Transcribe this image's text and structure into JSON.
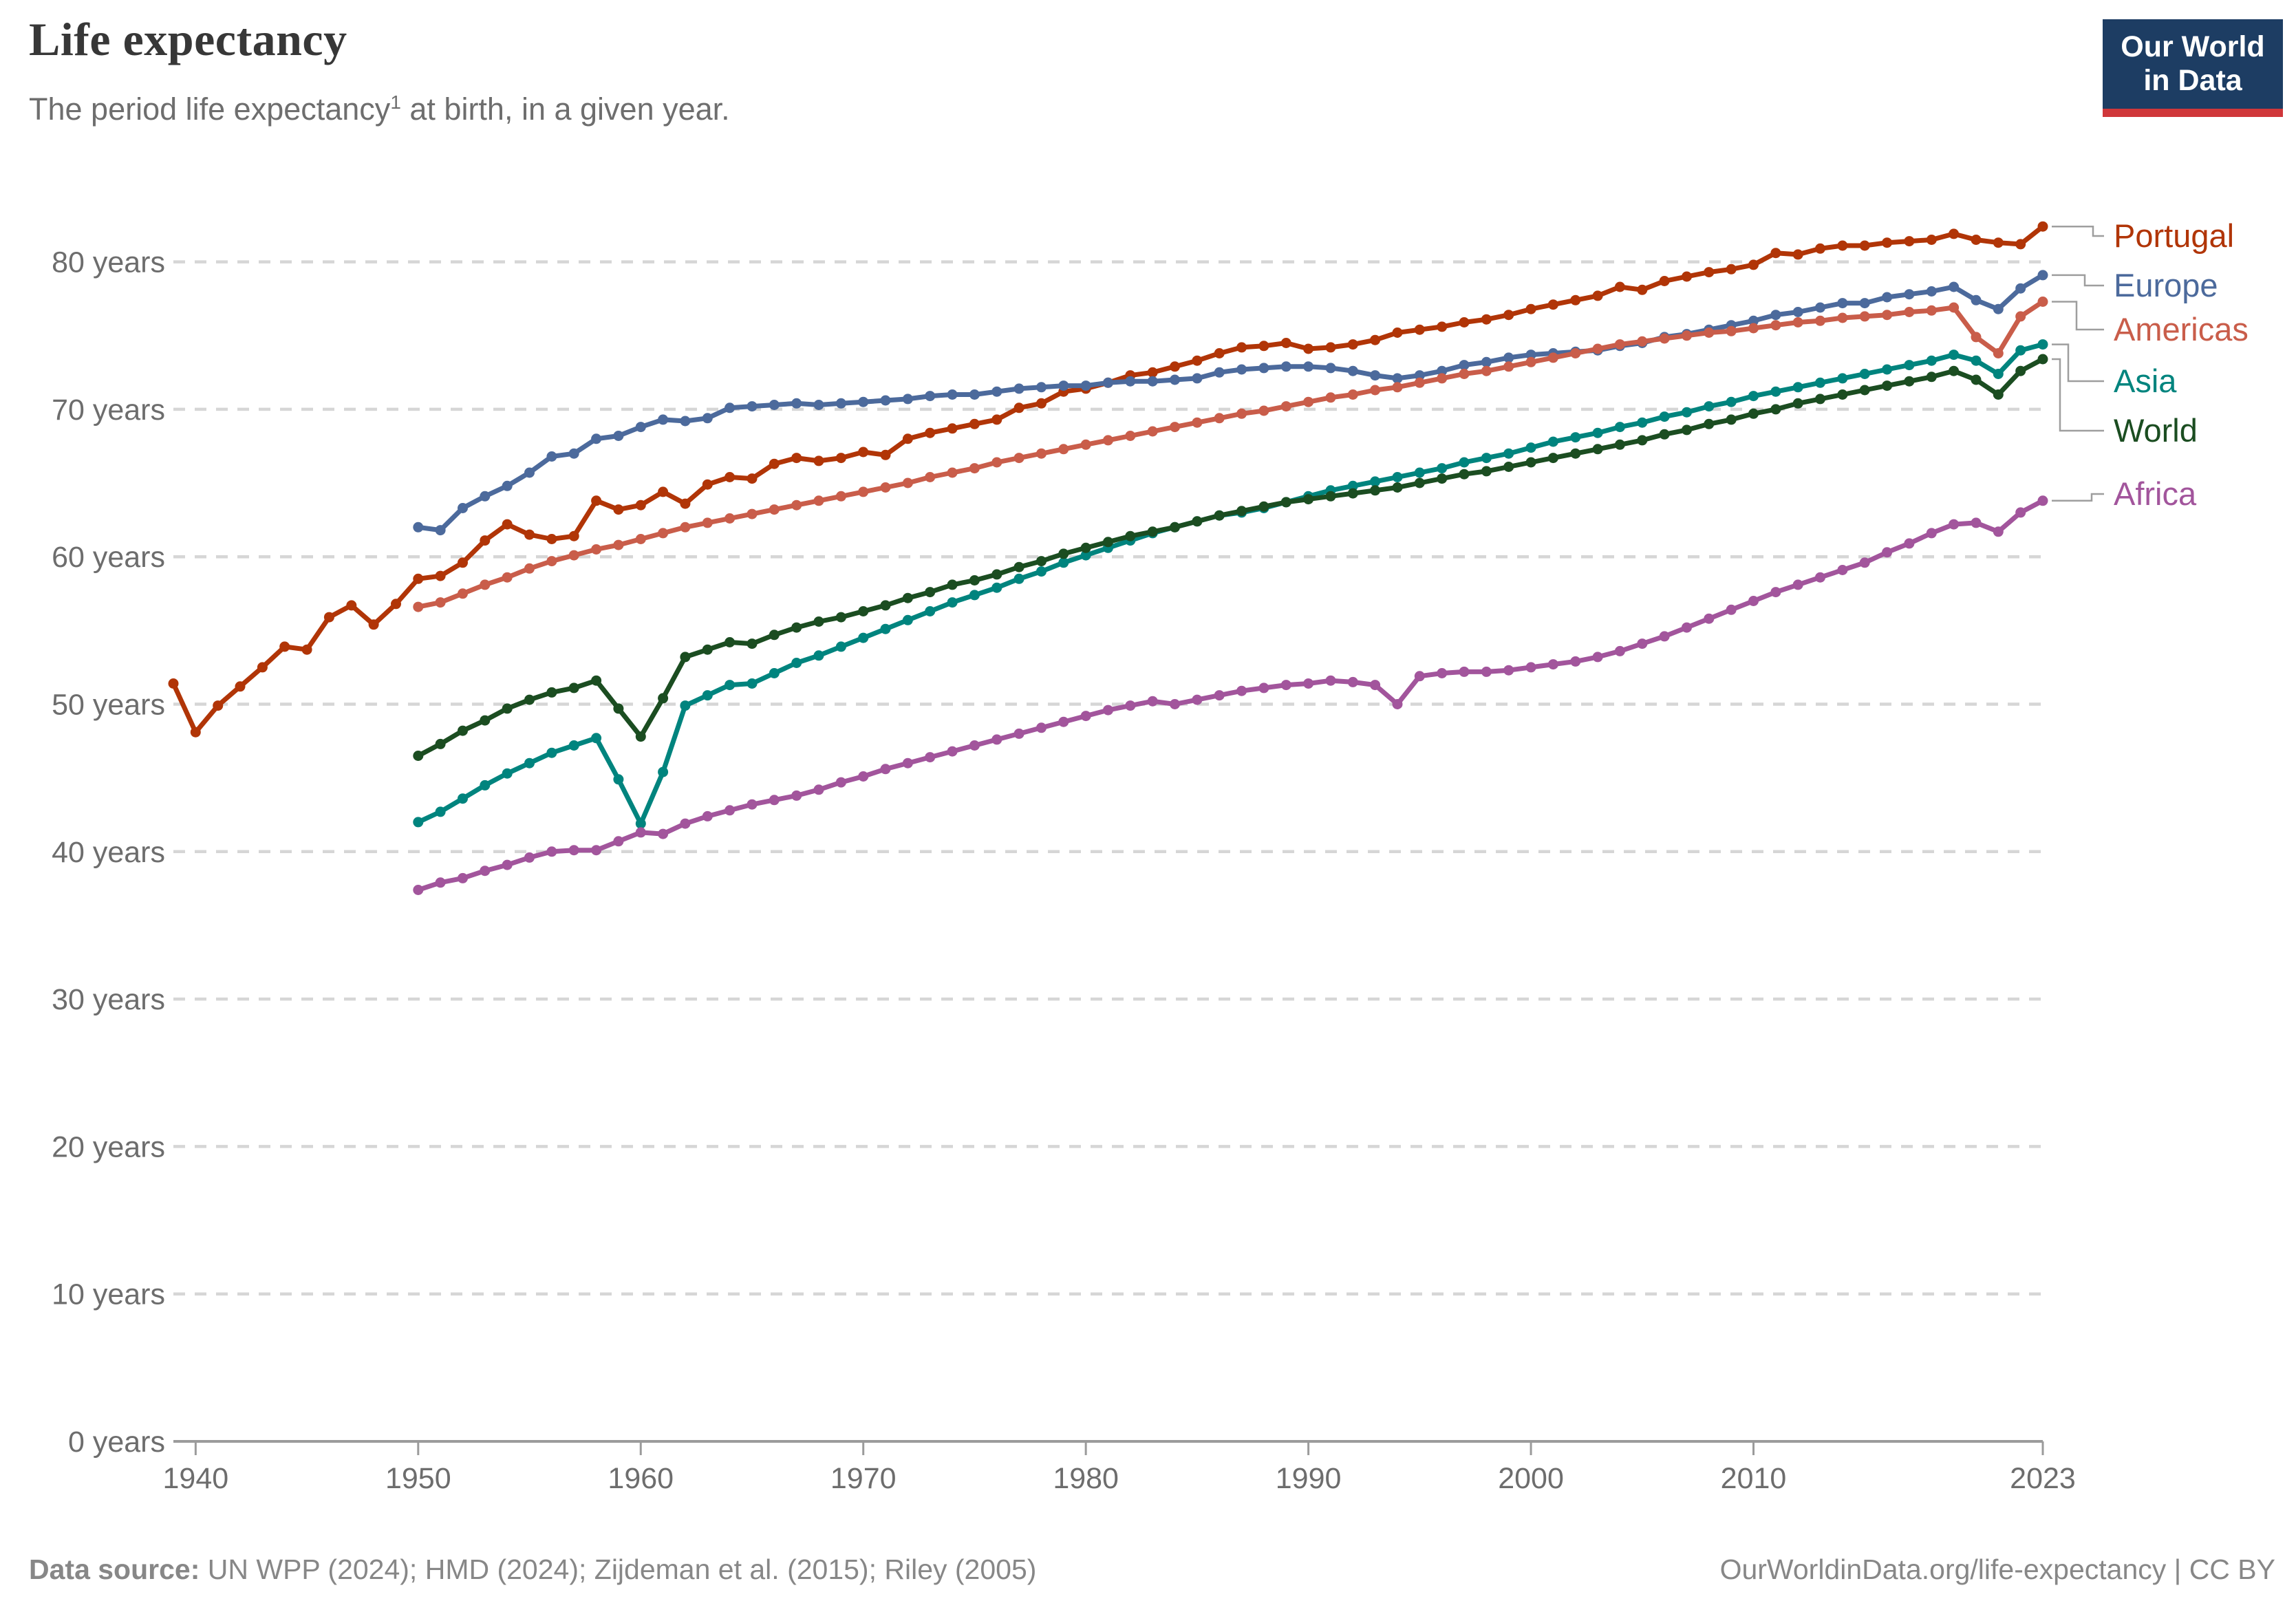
{
  "header": {
    "title": "Life expectancy",
    "subtitle": {
      "pre": "The period life expectancy",
      "sup": "1",
      "post": " at birth, in a given year."
    },
    "logo": {
      "line1": "Our World",
      "line2": "in Data"
    }
  },
  "footer": {
    "source_label": "Data source: ",
    "source_text": "UN WPP (2024); HMD (2024); Zijdeman et al. (2015); Riley (2005)",
    "right_text": "OurWorldinData.org/life-expectancy | CC BY"
  },
  "chart_data": {
    "type": "line",
    "title": "Life expectancy",
    "xlabel": "",
    "ylabel": "",
    "x_range": [
      1939,
      2023
    ],
    "ylim": [
      0,
      86
    ],
    "grid": "horizontal-dashed",
    "legend_position": "right",
    "unit_suffix": " years",
    "x_ticks": [
      {
        "value": 1940,
        "label": "1940"
      },
      {
        "value": 1950,
        "label": "1950"
      },
      {
        "value": 1960,
        "label": "1960"
      },
      {
        "value": 1970,
        "label": "1970"
      },
      {
        "value": 1980,
        "label": "1980"
      },
      {
        "value": 1990,
        "label": "1990"
      },
      {
        "value": 2000,
        "label": "2000"
      },
      {
        "value": 2010,
        "label": "2010"
      },
      {
        "value": 2023,
        "label": "2023"
      }
    ],
    "y_ticks": [
      {
        "value": 0,
        "label": "0 years"
      },
      {
        "value": 10,
        "label": "10 years"
      },
      {
        "value": 20,
        "label": "20 years"
      },
      {
        "value": 30,
        "label": "30 years"
      },
      {
        "value": 40,
        "label": "40 years"
      },
      {
        "value": 50,
        "label": "50 years"
      },
      {
        "value": 60,
        "label": "60 years"
      },
      {
        "value": 70,
        "label": "70 years"
      },
      {
        "value": 80,
        "label": "80 years"
      }
    ],
    "series": [
      {
        "name": "Portugal",
        "color": "#B13507",
        "start_year": 1939,
        "values": [
          51.4,
          48.1,
          49.9,
          51.2,
          52.5,
          53.9,
          53.7,
          55.9,
          56.7,
          55.4,
          56.8,
          58.5,
          58.7,
          59.6,
          61.1,
          62.2,
          61.5,
          61.2,
          61.4,
          63.8,
          63.2,
          63.5,
          64.4,
          63.6,
          64.9,
          65.4,
          65.3,
          66.3,
          66.7,
          66.5,
          66.7,
          67.1,
          66.9,
          68.0,
          68.4,
          68.7,
          69.0,
          69.3,
          70.1,
          70.4,
          71.2,
          71.4,
          71.8,
          72.3,
          72.5,
          72.9,
          73.3,
          73.8,
          74.2,
          74.3,
          74.5,
          74.1,
          74.2,
          74.4,
          74.7,
          75.2,
          75.4,
          75.6,
          75.9,
          76.1,
          76.4,
          76.8,
          77.1,
          77.4,
          77.7,
          78.3,
          78.1,
          78.7,
          79.0,
          79.3,
          79.5,
          79.8,
          80.6,
          80.5,
          80.9,
          81.1,
          81.1,
          81.3,
          81.4,
          81.5,
          81.9,
          81.5,
          81.3,
          81.2,
          82.4
        ]
      },
      {
        "name": "Europe",
        "color": "#4C6A9C",
        "start_year": 1950,
        "values": [
          62.0,
          61.8,
          63.3,
          64.1,
          64.8,
          65.7,
          66.8,
          67.0,
          68.0,
          68.2,
          68.8,
          69.3,
          69.2,
          69.4,
          70.1,
          70.2,
          70.3,
          70.4,
          70.3,
          70.4,
          70.5,
          70.6,
          70.7,
          70.9,
          71.0,
          71.0,
          71.2,
          71.4,
          71.5,
          71.6,
          71.6,
          71.8,
          71.9,
          71.9,
          72.0,
          72.1,
          72.5,
          72.7,
          72.8,
          72.9,
          72.9,
          72.8,
          72.6,
          72.3,
          72.1,
          72.3,
          72.6,
          73.0,
          73.2,
          73.5,
          73.7,
          73.8,
          73.9,
          74.0,
          74.3,
          74.5,
          74.9,
          75.1,
          75.4,
          75.7,
          76.0,
          76.4,
          76.6,
          76.9,
          77.2,
          77.2,
          77.6,
          77.8,
          78.0,
          78.3,
          77.4,
          76.8,
          78.2,
          79.1
        ]
      },
      {
        "name": "Americas",
        "color": "#C95D4A",
        "start_year": 1950,
        "values": [
          56.6,
          56.9,
          57.5,
          58.1,
          58.6,
          59.2,
          59.7,
          60.1,
          60.5,
          60.8,
          61.2,
          61.6,
          62.0,
          62.3,
          62.6,
          62.9,
          63.2,
          63.5,
          63.8,
          64.1,
          64.4,
          64.7,
          65.0,
          65.4,
          65.7,
          66.0,
          66.4,
          66.7,
          67.0,
          67.3,
          67.6,
          67.9,
          68.2,
          68.5,
          68.8,
          69.1,
          69.4,
          69.7,
          69.9,
          70.2,
          70.5,
          70.8,
          71.0,
          71.3,
          71.5,
          71.8,
          72.1,
          72.4,
          72.6,
          72.9,
          73.2,
          73.5,
          73.8,
          74.1,
          74.4,
          74.6,
          74.8,
          75.0,
          75.2,
          75.3,
          75.5,
          75.7,
          75.9,
          76.0,
          76.2,
          76.3,
          76.4,
          76.6,
          76.7,
          76.9,
          74.9,
          73.8,
          76.3,
          77.3
        ]
      },
      {
        "name": "Asia",
        "color": "#00847E",
        "start_year": 1950,
        "values": [
          42.0,
          42.7,
          43.6,
          44.5,
          45.3,
          46.0,
          46.7,
          47.2,
          47.7,
          44.9,
          41.9,
          45.4,
          49.9,
          50.6,
          51.3,
          51.4,
          52.1,
          52.8,
          53.3,
          53.9,
          54.5,
          55.1,
          55.7,
          56.3,
          56.9,
          57.4,
          57.9,
          58.5,
          59.0,
          59.6,
          60.1,
          60.6,
          61.1,
          61.6,
          62.0,
          62.4,
          62.8,
          63.0,
          63.3,
          63.7,
          64.1,
          64.5,
          64.8,
          65.1,
          65.4,
          65.7,
          66.0,
          66.4,
          66.7,
          67.0,
          67.4,
          67.8,
          68.1,
          68.4,
          68.8,
          69.1,
          69.5,
          69.8,
          70.2,
          70.5,
          70.9,
          71.2,
          71.5,
          71.8,
          72.1,
          72.4,
          72.7,
          73.0,
          73.3,
          73.7,
          73.3,
          72.4,
          74.0,
          74.4
        ]
      },
      {
        "name": "World",
        "color": "#1B4D21",
        "start_year": 1950,
        "values": [
          46.5,
          47.3,
          48.2,
          48.9,
          49.7,
          50.3,
          50.8,
          51.1,
          51.6,
          49.7,
          47.8,
          50.4,
          53.2,
          53.7,
          54.2,
          54.1,
          54.7,
          55.2,
          55.6,
          55.9,
          56.3,
          56.7,
          57.2,
          57.6,
          58.1,
          58.4,
          58.8,
          59.3,
          59.7,
          60.2,
          60.6,
          61.0,
          61.4,
          61.7,
          62.0,
          62.4,
          62.8,
          63.1,
          63.4,
          63.7,
          63.9,
          64.1,
          64.3,
          64.5,
          64.7,
          65.0,
          65.3,
          65.6,
          65.8,
          66.1,
          66.4,
          66.7,
          67.0,
          67.3,
          67.6,
          67.9,
          68.3,
          68.6,
          69.0,
          69.3,
          69.7,
          70.0,
          70.4,
          70.7,
          71.0,
          71.3,
          71.6,
          71.9,
          72.2,
          72.6,
          72.0,
          71.0,
          72.6,
          73.4
        ]
      },
      {
        "name": "Africa",
        "color": "#A2559C",
        "start_year": 1950,
        "values": [
          37.4,
          37.9,
          38.2,
          38.7,
          39.1,
          39.6,
          40.0,
          40.1,
          40.1,
          40.7,
          41.3,
          41.2,
          41.9,
          42.4,
          42.8,
          43.2,
          43.5,
          43.8,
          44.2,
          44.7,
          45.1,
          45.6,
          46.0,
          46.4,
          46.8,
          47.2,
          47.6,
          48.0,
          48.4,
          48.8,
          49.2,
          49.6,
          49.9,
          50.2,
          50.0,
          50.3,
          50.6,
          50.9,
          51.1,
          51.3,
          51.4,
          51.6,
          51.5,
          51.3,
          50.0,
          51.9,
          52.1,
          52.2,
          52.2,
          52.3,
          52.5,
          52.7,
          52.9,
          53.2,
          53.6,
          54.1,
          54.6,
          55.2,
          55.8,
          56.4,
          57.0,
          57.6,
          58.1,
          58.6,
          59.1,
          59.6,
          60.3,
          60.9,
          61.6,
          62.2,
          62.3,
          61.7,
          63.0,
          63.8
        ]
      }
    ]
  }
}
